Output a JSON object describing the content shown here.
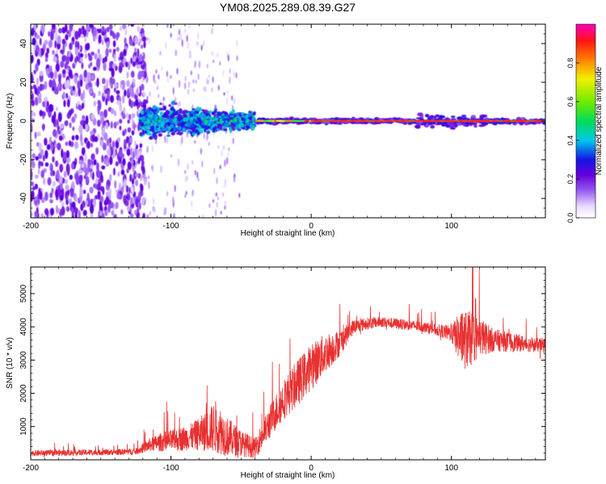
{
  "figure_title": "YM08.2025.289.08.39.G27",
  "colors": {
    "snr_line": "#e83030",
    "frame": "#000000",
    "ridge": "#ff2020"
  },
  "chart_data": [
    {
      "type": "heatmap",
      "title": "YM08.2025.289.08.39.G27",
      "xlabel": "Height of straight line (km)",
      "ylabel": "Frequency (Hz)",
      "xlim": [
        -200,
        167
      ],
      "ylim": [
        -50,
        50
      ],
      "xticks": [
        -200,
        -100,
        0,
        100
      ],
      "xtick_labels": [
        "-200",
        "-100",
        "0",
        "100"
      ],
      "yticks": [
        -40,
        -20,
        0,
        20,
        40
      ],
      "ytick_labels": [
        "-40",
        "-20",
        "0",
        "20",
        "40"
      ],
      "colorbar": {
        "label": "Normalized spectral amplitude",
        "range": [
          0,
          1
        ],
        "ticks": [
          0.0,
          0.2,
          0.4,
          0.6,
          0.8
        ],
        "tick_labels": [
          "0.0",
          "0.2",
          "0.4",
          "0.6",
          "0.8"
        ],
        "colormap": "rainbow (white-violet-blue-cyan-green-yellow-red-magenta)"
      },
      "regions": [
        {
          "x_range": [
            -200,
            -122
          ],
          "description": "broadband noise",
          "amplitude": 0.2
        },
        {
          "x_range": [
            -122,
            -40
          ],
          "description": "energy concentrated near 0 Hz, spread +/-10 Hz",
          "amplitude": 0.35
        },
        {
          "x_range": [
            -40,
            167
          ],
          "description": "narrow ridge at 0 Hz",
          "amplitude": 0.95
        }
      ]
    },
    {
      "type": "line",
      "xlabel": "Height of straight line (km)",
      "ylabel": "SNR (10 * v/v)",
      "xlim": [
        -200,
        167
      ],
      "ylim": [
        0,
        5800
      ],
      "xticks": [
        -200,
        -100,
        0,
        100
      ],
      "xtick_labels": [
        "-200",
        "-100",
        "0",
        "100"
      ],
      "yticks": [
        1000,
        2000,
        3000,
        4000,
        5000
      ],
      "ytick_labels": [
        "1000",
        "2000",
        "3000",
        "4000",
        "5000"
      ],
      "series": [
        {
          "name": "SNR",
          "x": [
            -200,
            -180,
            -160,
            -140,
            -125,
            -115,
            -105,
            -95,
            -85,
            -75,
            -68,
            -60,
            -50,
            -40,
            -30,
            -20,
            -10,
            0,
            10,
            20,
            30,
            40,
            50,
            60,
            70,
            80,
            90,
            100,
            105,
            110,
            115,
            120,
            130,
            140,
            150,
            160,
            167
          ],
          "values": [
            200,
            210,
            220,
            230,
            250,
            450,
            550,
            600,
            700,
            850,
            1000,
            700,
            500,
            350,
            1100,
            1800,
            2300,
            2800,
            3200,
            3500,
            4000,
            4100,
            4150,
            4100,
            4050,
            4000,
            3900,
            3800,
            3700,
            3600,
            3650,
            3700,
            3600,
            3550,
            3500,
            3450,
            3450
          ],
          "spread": [
            90,
            90,
            90,
            90,
            100,
            200,
            300,
            350,
            400,
            600,
            800,
            600,
            400,
            300,
            500,
            600,
            700,
            700,
            600,
            400,
            220,
            180,
            160,
            160,
            160,
            160,
            180,
            250,
            700,
            900,
            800,
            600,
            350,
            300,
            250,
            220,
            220
          ]
        }
      ]
    }
  ]
}
